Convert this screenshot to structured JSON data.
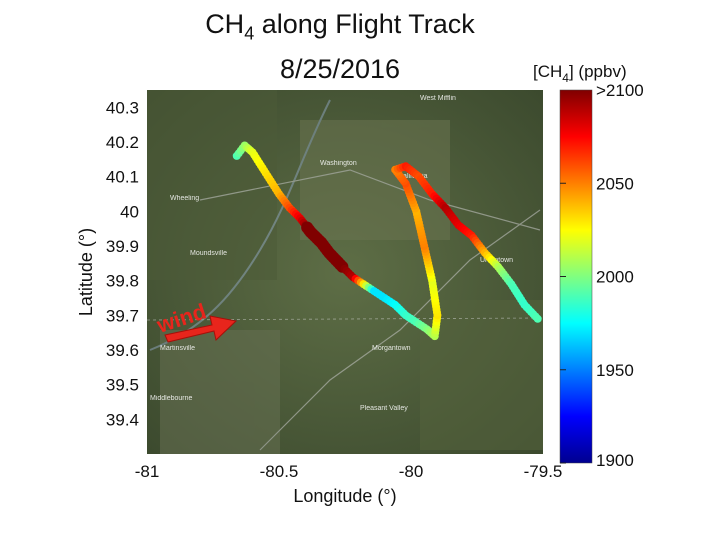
{
  "title_line1_main": "CH",
  "title_line1_sub": "4",
  "title_line1_rest": " along Flight Track",
  "title_line2": "8/25/2016",
  "chart_data": {
    "type": "scatter",
    "title": "CH4 along Flight Track 8/25/2016",
    "xlabel": "Longitude (°)",
    "ylabel": "Latitude (°)",
    "xlim": [
      -81,
      -79.5
    ],
    "ylim": [
      39.3,
      40.35
    ],
    "x_ticks": [
      -81,
      -80.5,
      -80,
      -79.5
    ],
    "x_tick_labels": [
      "-81",
      "-80.5",
      "-80",
      "-79.5"
    ],
    "y_ticks": [
      40.3,
      40.2,
      40.1,
      40,
      39.9,
      39.8,
      39.7,
      39.6,
      39.5,
      39.4
    ],
    "y_tick_labels": [
      "40.3",
      "40.2",
      "40.1",
      "40",
      "39.9",
      "39.8",
      "39.7",
      "39.6",
      "39.5",
      "39.4"
    ],
    "colorbar": {
      "label_main": "[CH",
      "label_sub": "4",
      "label_rest": "]  (ppbv)",
      "min": 1900,
      "max": 2100,
      "ticks": [
        1900,
        1950,
        2000,
        2050
      ],
      "tick_labels": [
        "1900",
        "1950",
        "2000",
        "2050"
      ],
      "top_label": ">2100"
    },
    "annotation": "wind",
    "background": "satellite map",
    "track": [
      {
        "lon": -80.66,
        "lat": 40.16,
        "ch4": 1990
      },
      {
        "lon": -80.63,
        "lat": 40.19,
        "ch4": 2005
      },
      {
        "lon": -80.6,
        "lat": 40.17,
        "ch4": 2020
      },
      {
        "lon": -80.55,
        "lat": 40.11,
        "ch4": 2030
      },
      {
        "lon": -80.5,
        "lat": 40.05,
        "ch4": 2040
      },
      {
        "lon": -80.46,
        "lat": 40.01,
        "ch4": 2060
      },
      {
        "lon": -80.42,
        "lat": 39.98,
        "ch4": 2080
      },
      {
        "lon": -80.38,
        "lat": 39.94,
        "ch4": 2110
      },
      {
        "lon": -80.34,
        "lat": 39.91,
        "ch4": 2120
      },
      {
        "lon": -80.31,
        "lat": 39.88,
        "ch4": 2110
      },
      {
        "lon": -80.26,
        "lat": 39.84,
        "ch4": 2100
      },
      {
        "lon": -80.22,
        "lat": 39.81,
        "ch4": 2090
      },
      {
        "lon": -80.18,
        "lat": 39.79,
        "ch4": 2030
      },
      {
        "lon": -80.14,
        "lat": 39.77,
        "ch4": 1970
      },
      {
        "lon": -80.1,
        "lat": 39.75,
        "ch4": 1970
      },
      {
        "lon": -80.06,
        "lat": 39.73,
        "ch4": 1975
      },
      {
        "lon": -80.02,
        "lat": 39.7,
        "ch4": 1985
      },
      {
        "lon": -79.98,
        "lat": 39.68,
        "ch4": 1990
      },
      {
        "lon": -79.94,
        "lat": 39.66,
        "ch4": 2000
      },
      {
        "lon": -79.91,
        "lat": 39.64,
        "ch4": 2010
      },
      {
        "lon": -79.9,
        "lat": 39.7,
        "ch4": 2030
      },
      {
        "lon": -79.92,
        "lat": 39.8,
        "ch4": 2020
      },
      {
        "lon": -79.95,
        "lat": 39.9,
        "ch4": 2050
      },
      {
        "lon": -79.98,
        "lat": 40.0,
        "ch4": 2040
      },
      {
        "lon": -80.02,
        "lat": 40.08,
        "ch4": 2060
      },
      {
        "lon": -80.06,
        "lat": 40.12,
        "ch4": 2050
      },
      {
        "lon": -80.02,
        "lat": 40.13,
        "ch4": 2070
      },
      {
        "lon": -79.97,
        "lat": 40.1,
        "ch4": 2060
      },
      {
        "lon": -79.92,
        "lat": 40.05,
        "ch4": 2070
      },
      {
        "lon": -79.87,
        "lat": 40.01,
        "ch4": 2090
      },
      {
        "lon": -79.82,
        "lat": 39.96,
        "ch4": 2080
      },
      {
        "lon": -79.77,
        "lat": 39.93,
        "ch4": 2070
      },
      {
        "lon": -79.72,
        "lat": 39.88,
        "ch4": 2040
      },
      {
        "lon": -79.67,
        "lat": 39.84,
        "ch4": 2010
      },
      {
        "lon": -79.62,
        "lat": 39.79,
        "ch4": 1990
      },
      {
        "lon": -79.57,
        "lat": 39.73,
        "ch4": 1985
      },
      {
        "lon": -79.52,
        "lat": 39.69,
        "ch4": 1990
      }
    ]
  }
}
